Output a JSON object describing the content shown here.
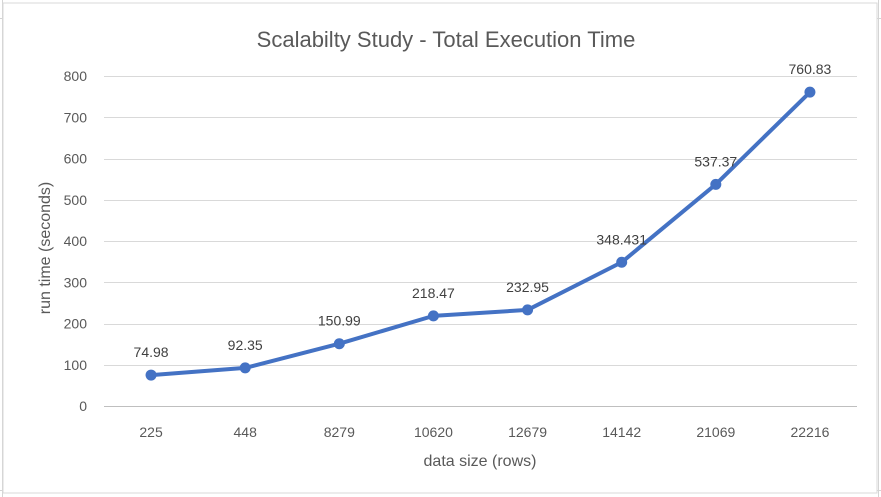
{
  "chart_data": {
    "type": "line",
    "title": "Scalabilty Study - Total Execution Time",
    "xlabel": "data size (rows)",
    "ylabel": "run time (seconds)",
    "categories": [
      "225",
      "448",
      "8279",
      "10620",
      "12679",
      "14142",
      "21069",
      "22216"
    ],
    "series": [
      {
        "values": [
          74.98,
          92.35,
          150.99,
          218.47,
          232.95,
          348.431,
          537.37,
          760.83
        ],
        "labels": [
          "74.98",
          "92.35",
          "150.99",
          "218.47",
          "232.95",
          "348.431",
          "537.37",
          "760.83"
        ],
        "color": "#4472C4"
      }
    ],
    "ylim": [
      0,
      800
    ],
    "yticks": [
      "0",
      "100",
      "200",
      "300",
      "400",
      "500",
      "600",
      "700",
      "800"
    ],
    "grid": true,
    "legend": "none"
  }
}
